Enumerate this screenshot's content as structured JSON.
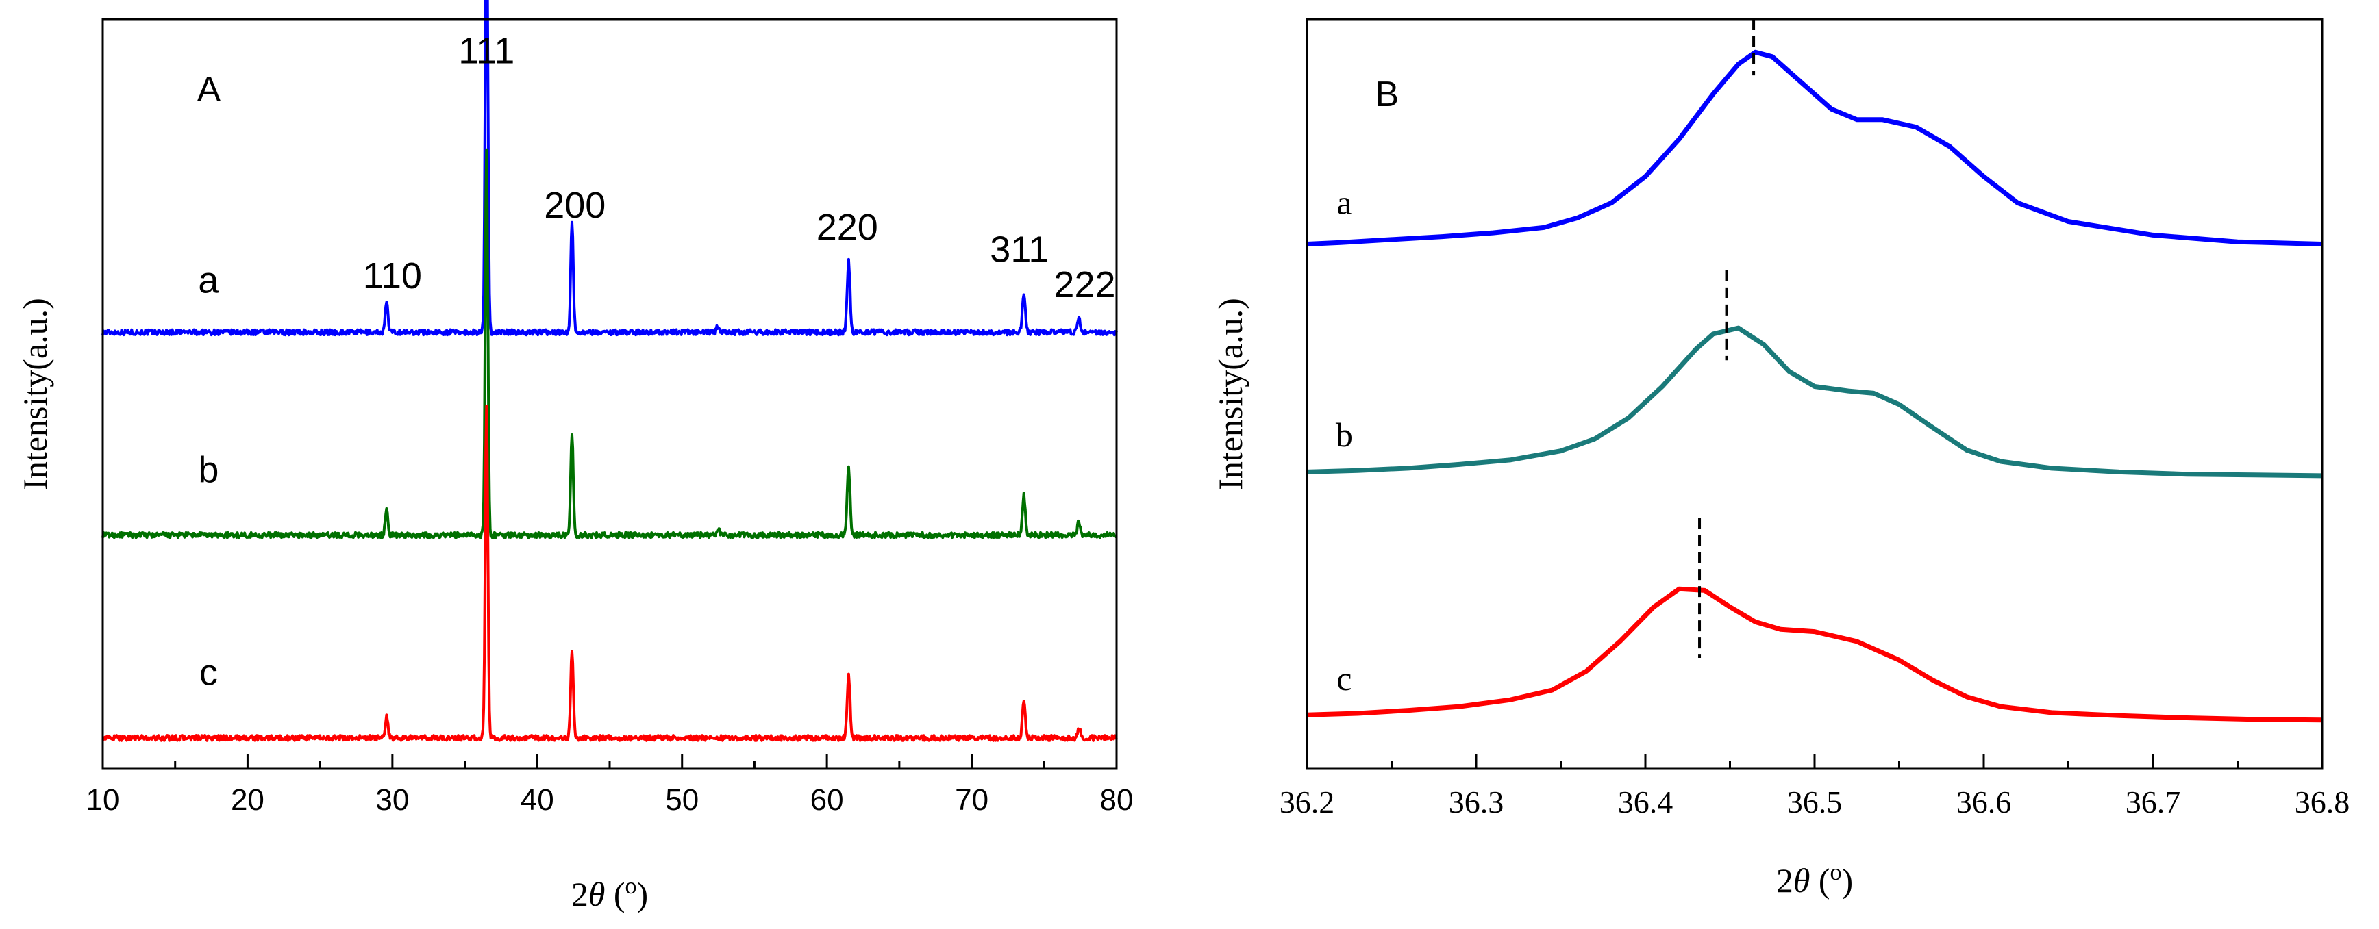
{
  "chart_data": [
    {
      "id": "A",
      "type": "line",
      "panel_label": "A",
      "xlabel": "2θ (°)",
      "ylabel": "Intensity(a.u.)",
      "xlim": [
        10,
        80
      ],
      "x_ticks": [
        10,
        20,
        30,
        40,
        50,
        60,
        70,
        80
      ],
      "y_ticks_shown": false,
      "background_noise": 0.012,
      "series": [
        {
          "name": "a",
          "color": "#0000ff",
          "baseline": 0.94,
          "peaks": [
            {
              "x": 29.6,
              "h": 0.07,
              "w": 0.09
            },
            {
              "x": 36.5,
              "h": 1.02,
              "w": 0.09
            },
            {
              "x": 42.4,
              "h": 0.25,
              "w": 0.09
            },
            {
              "x": 52.5,
              "h": 0.015,
              "w": 0.1
            },
            {
              "x": 61.5,
              "h": 0.16,
              "w": 0.1
            },
            {
              "x": 73.6,
              "h": 0.09,
              "w": 0.1
            },
            {
              "x": 77.4,
              "h": 0.03,
              "w": 0.1
            }
          ]
        },
        {
          "name": "b",
          "color": "#007000",
          "baseline": 0.48,
          "peaks": [
            {
              "x": 29.6,
              "h": 0.06,
              "w": 0.09
            },
            {
              "x": 36.5,
              "h": 0.87,
              "w": 0.09
            },
            {
              "x": 42.4,
              "h": 0.23,
              "w": 0.09
            },
            {
              "x": 52.5,
              "h": 0.015,
              "w": 0.1
            },
            {
              "x": 61.5,
              "h": 0.15,
              "w": 0.1
            },
            {
              "x": 73.6,
              "h": 0.09,
              "w": 0.1
            },
            {
              "x": 77.4,
              "h": 0.03,
              "w": 0.1
            }
          ]
        },
        {
          "name": "c",
          "color": "#ff0000",
          "baseline": 0.02,
          "peaks": [
            {
              "x": 29.6,
              "h": 0.05,
              "w": 0.09
            },
            {
              "x": 36.5,
              "h": 0.75,
              "w": 0.09
            },
            {
              "x": 42.4,
              "h": 0.2,
              "w": 0.09
            },
            {
              "x": 61.5,
              "h": 0.14,
              "w": 0.1
            },
            {
              "x": 73.6,
              "h": 0.08,
              "w": 0.1
            },
            {
              "x": 77.4,
              "h": 0.025,
              "w": 0.1
            }
          ]
        }
      ],
      "peak_annotations": [
        {
          "text": "110",
          "x": 30.0,
          "y": 1.04
        },
        {
          "text": "111",
          "x": 36.5,
          "y": 1.55
        },
        {
          "text": "200",
          "x": 42.6,
          "y": 1.2
        },
        {
          "text": "220",
          "x": 61.4,
          "y": 1.15
        },
        {
          "text": "311",
          "x": 73.3,
          "y": 1.1
        },
        {
          "text": "222",
          "x": 77.8,
          "y": 1.02
        }
      ],
      "series_labels": [
        {
          "text": "a",
          "x": 17.3,
          "y": 1.03
        },
        {
          "text": "b",
          "x": 17.3,
          "y": 0.6
        },
        {
          "text": "c",
          "x": 17.3,
          "y": 0.14
        }
      ],
      "ylim": [
        -0.05,
        1.65
      ]
    },
    {
      "id": "B",
      "type": "line",
      "panel_label": "B",
      "xlabel": "2θ (°)",
      "ylabel": "Intensity(a.u.)",
      "xlim": [
        36.2,
        36.8
      ],
      "x_ticks": [
        36.2,
        36.3,
        36.4,
        36.5,
        36.6,
        36.7,
        36.8
      ],
      "y_ticks_shown": false,
      "ylim": [
        0,
        1
      ],
      "series": [
        {
          "name": "a",
          "color": "#0000ff",
          "x": [
            36.2,
            36.22,
            36.25,
            36.28,
            36.31,
            36.34,
            36.36,
            36.38,
            36.4,
            36.42,
            36.44,
            36.455,
            36.465,
            36.475,
            36.49,
            36.51,
            36.525,
            36.54,
            36.56,
            36.58,
            36.6,
            36.62,
            36.65,
            36.7,
            36.75,
            36.8
          ],
          "y": [
            0.7,
            0.702,
            0.706,
            0.71,
            0.715,
            0.722,
            0.735,
            0.755,
            0.79,
            0.84,
            0.9,
            0.94,
            0.956,
            0.95,
            0.92,
            0.88,
            0.866,
            0.866,
            0.856,
            0.83,
            0.79,
            0.755,
            0.73,
            0.712,
            0.703,
            0.7
          ]
        },
        {
          "name": "b",
          "color": "#1a7a7a",
          "x": [
            36.2,
            36.23,
            36.26,
            36.29,
            36.32,
            36.35,
            36.37,
            36.39,
            36.41,
            36.43,
            36.44,
            36.455,
            36.47,
            36.485,
            36.5,
            36.52,
            36.535,
            36.55,
            36.57,
            36.59,
            36.61,
            36.64,
            36.68,
            36.72,
            36.76,
            36.8
          ],
          "y": [
            0.396,
            0.398,
            0.401,
            0.406,
            0.412,
            0.424,
            0.44,
            0.468,
            0.51,
            0.56,
            0.58,
            0.588,
            0.566,
            0.53,
            0.51,
            0.504,
            0.501,
            0.486,
            0.455,
            0.425,
            0.41,
            0.401,
            0.396,
            0.393,
            0.392,
            0.391
          ]
        },
        {
          "name": "c",
          "color": "#ff0000",
          "x": [
            36.2,
            36.23,
            36.26,
            36.29,
            36.32,
            36.345,
            36.365,
            36.385,
            36.405,
            36.42,
            36.435,
            36.45,
            36.465,
            36.48,
            36.5,
            36.525,
            36.55,
            36.57,
            36.59,
            36.61,
            36.64,
            36.68,
            36.72,
            36.76,
            36.8
          ],
          "y": [
            0.072,
            0.074,
            0.078,
            0.083,
            0.092,
            0.105,
            0.13,
            0.17,
            0.216,
            0.24,
            0.238,
            0.216,
            0.196,
            0.186,
            0.183,
            0.17,
            0.145,
            0.118,
            0.096,
            0.083,
            0.075,
            0.071,
            0.068,
            0.066,
            0.065
          ]
        }
      ],
      "peak_markers": [
        {
          "series": "a",
          "x": 36.464,
          "y_from": 0.925,
          "y_to": 1.0
        },
        {
          "series": "b",
          "x": 36.448,
          "y_from": 0.545,
          "y_to": 0.665
        },
        {
          "series": "c",
          "x": 36.432,
          "y_from": 0.148,
          "y_to": 0.335
        }
      ],
      "series_labels": [
        {
          "text": "a",
          "x": 36.222,
          "y": 0.74
        },
        {
          "text": "b",
          "x": 36.222,
          "y": 0.43
        },
        {
          "text": "c",
          "x": 36.222,
          "y": 0.105
        }
      ]
    }
  ]
}
